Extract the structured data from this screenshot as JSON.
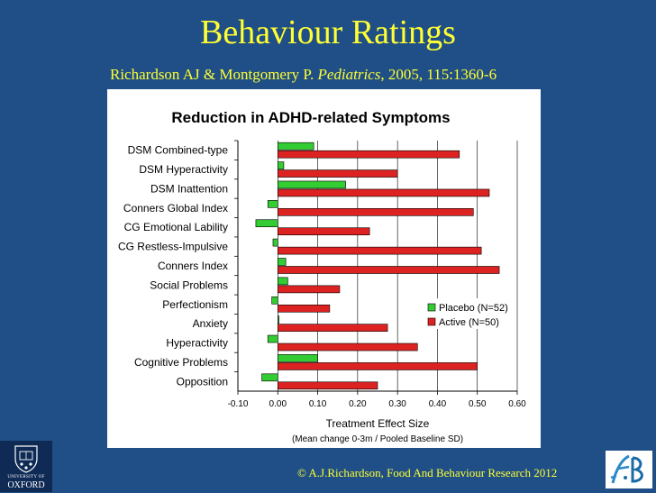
{
  "slide": {
    "title": "Behaviour Ratings",
    "citation_authors": "Richardson AJ & Montgomery P.",
    "citation_journal": "Pediatrics",
    "citation_rest": ", 2005, 115:1360-6",
    "footer": "© A.J.Richardson, Food And Behaviour Research 2012",
    "logo_university_line": "UNIVERSITY OF",
    "logo_oxford_line": "OXFORD"
  },
  "colors": {
    "background": "#1f4f86",
    "title_text": "#ffff33",
    "placebo": "#33cc33",
    "active": "#dd2222"
  },
  "chart_data": {
    "type": "bar",
    "orientation": "horizontal",
    "title": "Reduction in ADHD-related Symptoms",
    "xlabel": "Treatment Effect Size",
    "xlabel_sub": "(Mean change 0-3m / Pooled Baseline SD)",
    "ylabel": "",
    "xlim": [
      -0.1,
      0.6
    ],
    "xticks": [
      "-0.10",
      "0.00",
      "0.10",
      "0.20",
      "0.30",
      "0.40",
      "0.50",
      "0.60"
    ],
    "grid": "vertical",
    "legend_position": "right",
    "categories": [
      "DSM Combined-type",
      "DSM Hyperactivity",
      "DSM Inattention",
      "Conners Global Index",
      "CG Emotional Lability",
      "CG Restless-Impulsive",
      "Conners Index",
      "Social Problems",
      "Perfectionism",
      "Anxiety",
      "Hyperactivity",
      "Cognitive Problems",
      "Opposition"
    ],
    "series": [
      {
        "name": "Placebo (N=52)",
        "color": "#33cc33",
        "values": [
          0.09,
          0.015,
          0.17,
          -0.025,
          -0.055,
          -0.012,
          0.02,
          0.025,
          -0.015,
          0.003,
          -0.025,
          0.1,
          -0.04
        ]
      },
      {
        "name": "Active (N=50)",
        "color": "#dd2222",
        "values": [
          0.455,
          0.3,
          0.53,
          0.49,
          0.23,
          0.51,
          0.555,
          0.155,
          0.13,
          0.275,
          0.35,
          0.5,
          0.25
        ]
      }
    ]
  }
}
